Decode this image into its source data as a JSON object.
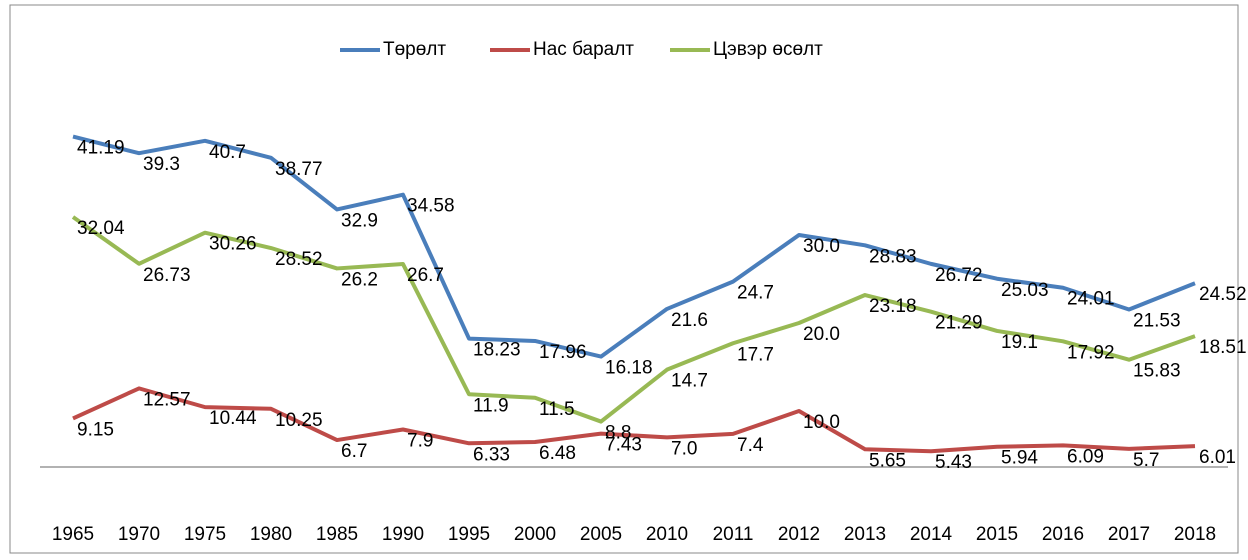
{
  "chart_data": {
    "type": "line",
    "categories": [
      "1965",
      "1970",
      "1975",
      "1980",
      "1985",
      "1990",
      "1995",
      "2000",
      "2005",
      "2010",
      "2011",
      "2012",
      "2013",
      "2014",
      "2015",
      "2016",
      "2017",
      "2018"
    ],
    "ylim": [
      0,
      45
    ],
    "legend": "top",
    "series": [
      {
        "name": "Төрөлт",
        "color": "#4a7ebb",
        "values": [
          41.19,
          39.3,
          40.7,
          38.77,
          32.9,
          34.58,
          18.23,
          17.96,
          16.18,
          21.6,
          24.7,
          30,
          28.83,
          26.72,
          25.03,
          24.01,
          21.53,
          24.52
        ],
        "value_labels": [
          "41.19",
          "39.3",
          "40.7",
          "38.77",
          "32.9",
          "34.58",
          "18.23",
          "17.96",
          "16.18",
          "21.6",
          "24.7",
          "30.0",
          "28.83",
          "26.72",
          "25.03",
          "24.01",
          "21.53",
          "24.52"
        ]
      },
      {
        "name": "Нас баралт",
        "color": "#be4b48",
        "values": [
          9.15,
          12.57,
          10.44,
          10.25,
          6.7,
          7.9,
          6.33,
          6.48,
          7.43,
          7,
          7.4,
          10,
          5.65,
          5.43,
          5.94,
          6.09,
          5.7,
          6.01
        ],
        "value_labels": [
          "9.15",
          "12.57",
          "10.44",
          "10.25",
          "6.7",
          "7.9",
          "6.33",
          "6.48",
          "7.43",
          "7.0",
          "7.4",
          "10.0",
          "5.65",
          "5.43",
          "5.94",
          "6.09",
          "5.7",
          "6.01"
        ]
      },
      {
        "name": "Цэвэр өсөлт",
        "color": "#98b954",
        "values": [
          32.04,
          26.73,
          30.26,
          28.52,
          26.2,
          26.7,
          11.9,
          11.5,
          8.8,
          14.7,
          17.7,
          20,
          23.18,
          21.29,
          19.1,
          17.92,
          15.83,
          18.51
        ],
        "value_labels": [
          "32.04",
          "26.73",
          "30.26",
          "28.52",
          "26.2",
          "26.7",
          "11.9",
          "11.5",
          "8.8",
          "14.7",
          "17.7",
          "20.0",
          "23.18",
          "21.29",
          "19.1",
          "17.92",
          "15.83",
          "18.51"
        ]
      }
    ]
  }
}
